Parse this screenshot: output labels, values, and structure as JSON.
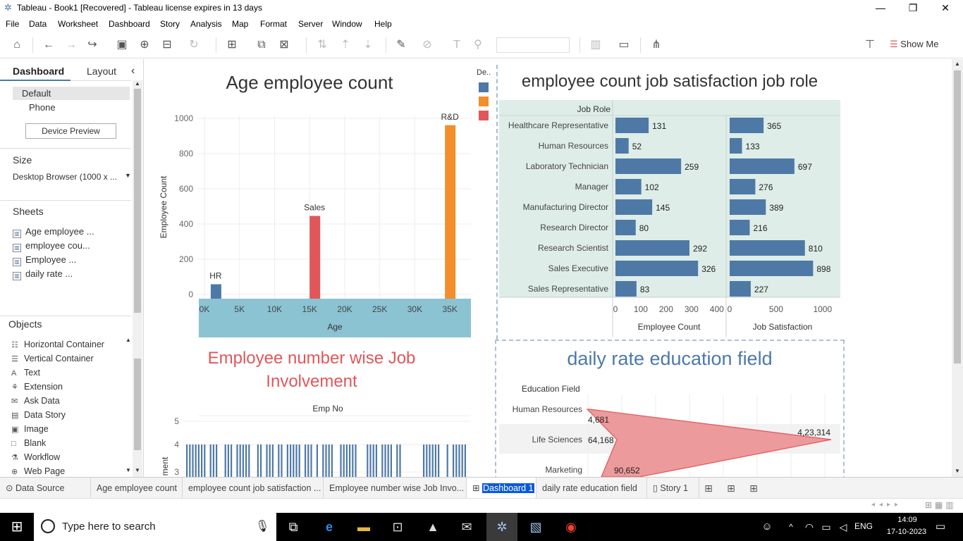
{
  "window": {
    "title": "Tableau - Book1 [Recovered] - Tableau license expires in 13 days",
    "min": "—",
    "max": "❐",
    "close": "✕"
  },
  "menu": [
    "File",
    "Data",
    "Worksheet",
    "Dashboard",
    "Story",
    "Analysis",
    "Map",
    "Format",
    "Server",
    "Window",
    "Help"
  ],
  "toolbar": {
    "show_me": "Show Me"
  },
  "left_panel": {
    "tab_dashboard": "Dashboard",
    "tab_layout": "Layout",
    "collapse": "‹",
    "devices": [
      "Default",
      "Phone"
    ],
    "device_preview": "Device Preview",
    "size_heading": "Size",
    "size_value": "Desktop Browser (1000 x ...",
    "sheets_heading": "Sheets",
    "sheets": [
      "Age employee ...",
      "employee cou...",
      "Employee ...",
      "daily rate ..."
    ],
    "objects_heading": "Objects",
    "objects": [
      {
        "label": "Horizontal Container",
        "icon": "☷"
      },
      {
        "label": "Vertical Container",
        "icon": "☰"
      },
      {
        "label": "Text",
        "icon": "A"
      },
      {
        "label": "Extension",
        "icon": "⚘"
      },
      {
        "label": "Ask Data",
        "icon": "✉"
      },
      {
        "label": "Data Story",
        "icon": "▤"
      },
      {
        "label": "Image",
        "icon": "▣"
      },
      {
        "label": "Blank",
        "icon": "□"
      },
      {
        "label": "Workflow",
        "icon": "⚗"
      },
      {
        "label": "Web Page",
        "icon": "⊕"
      }
    ]
  },
  "legend": {
    "title": "De..",
    "colors": [
      "#4e79a7",
      "#f28e2b",
      "#e15759"
    ]
  },
  "chart_age": {
    "title": "Age employee count",
    "chart_data": {
      "type": "bar",
      "title": "Age employee count",
      "xlabel": "Age",
      "ylabel": "Employee Count",
      "xlim": [
        0,
        38000
      ],
      "ylim": [
        0,
        1000
      ],
      "x_ticks": [
        "0K",
        "5K",
        "10K",
        "15K",
        "20K",
        "25K",
        "30K",
        "35K"
      ],
      "x_tick_values": [
        0,
        5000,
        10000,
        15000,
        20000,
        25000,
        30000,
        35000
      ],
      "y_ticks": [
        0,
        200,
        400,
        600,
        800,
        1000
      ],
      "bars": [
        {
          "label": "HR",
          "x": 1600,
          "value": 58,
          "color": "#4e79a7"
        },
        {
          "label": "Sales",
          "x": 15700,
          "value": 446,
          "color": "#e15759"
        },
        {
          "label": "R&D",
          "x": 35000,
          "value": 961,
          "color": "#f28e2b"
        }
      ]
    }
  },
  "chart_jobrole": {
    "title": "employee count job satisfaction job role",
    "header": "Job Role",
    "chart_data": {
      "type": "bar",
      "title": "employee count job satisfaction job role",
      "categories": [
        "Healthcare Representative",
        "Human Resources",
        "Laboratory Technician",
        "Manager",
        "Manufacturing Director",
        "Research Director",
        "Research Scientist",
        "Sales Executive",
        "Sales Representative"
      ],
      "series": [
        {
          "name": "Employee Count",
          "values": [
            131,
            52,
            259,
            102,
            145,
            80,
            292,
            326,
            83
          ],
          "xlim": [
            0,
            420
          ],
          "ticks": [
            0,
            100,
            200,
            300,
            400
          ]
        },
        {
          "name": "Job Satisfaction",
          "values": [
            365,
            133,
            697,
            276,
            389,
            216,
            810,
            898,
            227
          ],
          "xlim": [
            0,
            1100
          ],
          "ticks": [
            0,
            500,
            1000
          ]
        }
      ],
      "color": "#4e79a7"
    }
  },
  "chart_involvement": {
    "title_line1": "Employee number wise Job",
    "title_line2": "Involvement",
    "header": "Emp No",
    "ylabel_partial": "ment",
    "y_ticks": [
      5,
      4,
      3
    ],
    "bar_value": 4
  },
  "chart_daily": {
    "title": "daily rate education field",
    "header": "Education Field",
    "chart_data": {
      "type": "area",
      "title": "daily rate education field",
      "categories": [
        "Human Resources",
        "Life Sciences",
        "Marketing"
      ],
      "values": [
        4681,
        64168,
        90652
      ],
      "max_value": 423314,
      "labels": [
        "4,681",
        "64,168",
        "90,652",
        "4,23,314"
      ],
      "color": "#e15759"
    }
  },
  "tabs": {
    "data_source": "Data Source",
    "items": [
      "Age employee count",
      "employee count job satisfaction ...",
      "Employee number wise Job Invo...",
      "Dashboard 1",
      "daily rate education field",
      "Story 1"
    ]
  },
  "taskbar": {
    "search_placeholder": "Type here to search",
    "lang": "ENG",
    "time": "14:09",
    "date": "17-10-2023"
  }
}
